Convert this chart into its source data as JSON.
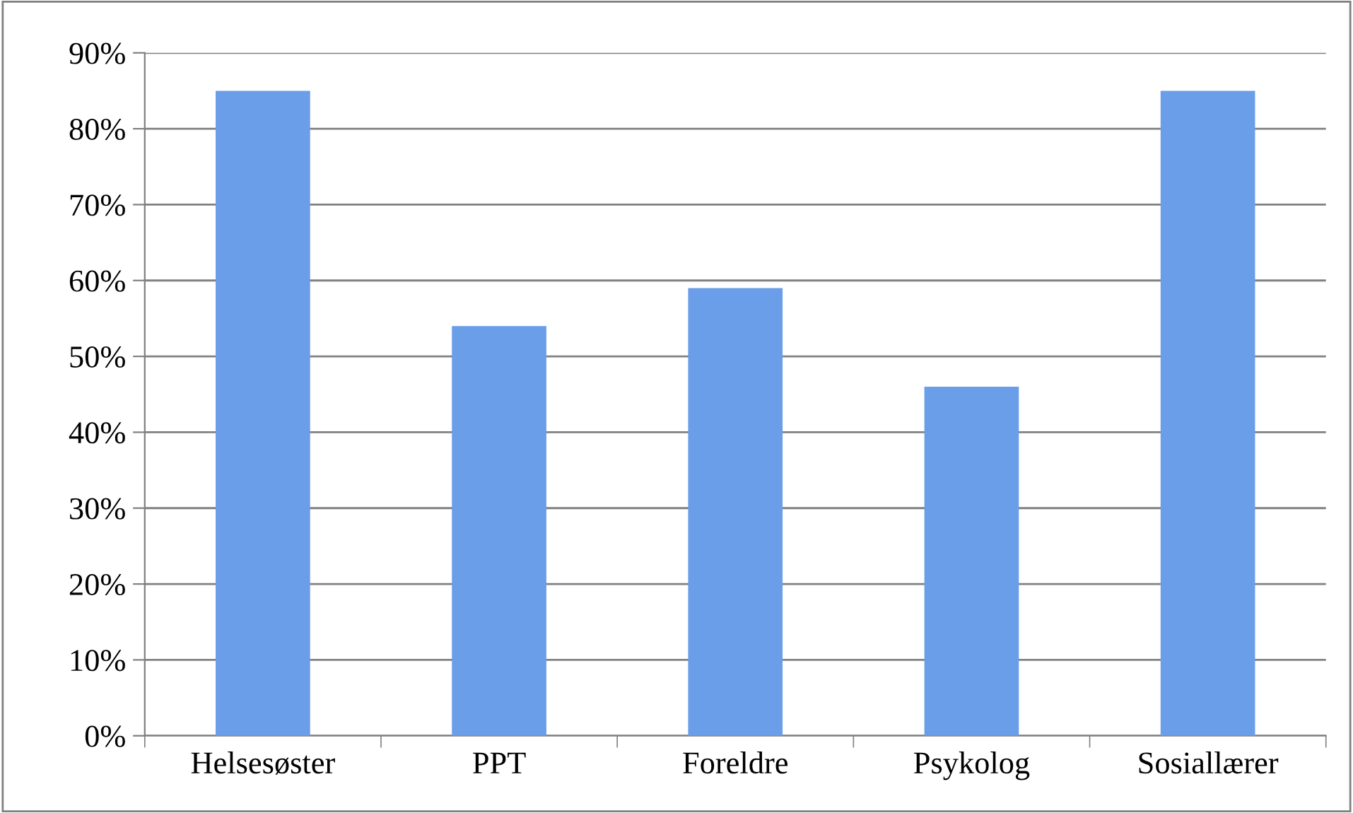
{
  "chart_data": {
    "type": "bar",
    "categories": [
      "Helsesøster",
      "PPT",
      "Foreldre",
      "Psykolog",
      "Sosiallærer"
    ],
    "values": [
      85,
      54,
      59,
      46,
      85
    ],
    "color": "#6a9ee8",
    "ylim": [
      0,
      90
    ],
    "yticks": [
      {
        "value": 0,
        "label": "0%"
      },
      {
        "value": 10,
        "label": "10%"
      },
      {
        "value": 20,
        "label": "20%"
      },
      {
        "value": 30,
        "label": "30%"
      },
      {
        "value": 40,
        "label": "40%"
      },
      {
        "value": 50,
        "label": "50%"
      },
      {
        "value": 60,
        "label": "60%"
      },
      {
        "value": 70,
        "label": "70%"
      },
      {
        "value": 80,
        "label": "80%"
      },
      {
        "value": 90,
        "label": "90%"
      }
    ],
    "grid": "y",
    "legend": false
  }
}
